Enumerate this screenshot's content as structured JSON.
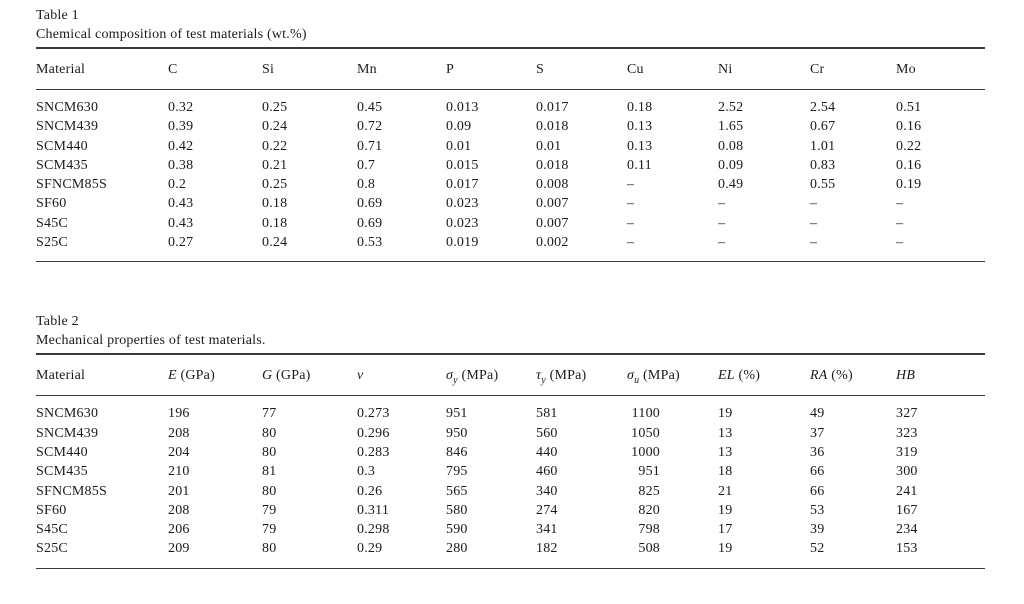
{
  "page": {
    "background": "#ffffff",
    "text_color": "#1b1b1b",
    "rule_color": "#3a3a3a"
  },
  "table1": {
    "label": "Table 1",
    "caption": "Chemical composition of test materials (wt.%)",
    "headers": [
      [
        {
          "t": "Material"
        }
      ],
      [
        {
          "t": "C"
        }
      ],
      [
        {
          "t": "Si"
        }
      ],
      [
        {
          "t": "Mn"
        }
      ],
      [
        {
          "t": "P"
        }
      ],
      [
        {
          "t": "S"
        }
      ],
      [
        {
          "t": "Cu"
        }
      ],
      [
        {
          "t": "Ni"
        }
      ],
      [
        {
          "t": "Cr"
        }
      ],
      [
        {
          "t": "Mo"
        }
      ]
    ],
    "rows": [
      [
        "SNCM630",
        "0.32",
        "0.25",
        "0.45",
        "0.013",
        "0.017",
        "0.18",
        "2.52",
        "2.54",
        "0.51"
      ],
      [
        "SNCM439",
        "0.39",
        "0.24",
        "0.72",
        "0.09",
        "0.018",
        "0.13",
        "1.65",
        "0.67",
        "0.16"
      ],
      [
        "SCM440",
        "0.42",
        "0.22",
        "0.71",
        "0.01",
        "0.01",
        "0.13",
        "0.08",
        "1.01",
        "0.22"
      ],
      [
        "SCM435",
        "0.38",
        "0.21",
        "0.7",
        "0.015",
        "0.018",
        "0.11",
        "0.09",
        "0.83",
        "0.16"
      ],
      [
        "SFNCM85S",
        "0.2",
        "0.25",
        "0.8",
        "0.017",
        "0.008",
        "–",
        "0.49",
        "0.55",
        "0.19"
      ],
      [
        "SF60",
        "0.43",
        "0.18",
        "0.69",
        "0.023",
        "0.007",
        "–",
        "–",
        "–",
        "–"
      ],
      [
        "S45C",
        "0.43",
        "0.18",
        "0.69",
        "0.023",
        "0.007",
        "–",
        "–",
        "–",
        "–"
      ],
      [
        "S25C",
        "0.27",
        "0.24",
        "0.53",
        "0.019",
        "0.002",
        "–",
        "–",
        "–",
        "–"
      ]
    ]
  },
  "table2": {
    "label": "Table 2",
    "caption": "Mechanical properties of test materials.",
    "headers": [
      [
        {
          "t": "Material"
        }
      ],
      [
        {
          "t": "E",
          "s": "i"
        },
        {
          "t": " (GPa)"
        }
      ],
      [
        {
          "t": "G",
          "s": "i"
        },
        {
          "t": " (GPa)"
        }
      ],
      [
        {
          "t": "ν",
          "s": "i"
        }
      ],
      [
        {
          "t": "σ",
          "s": "i"
        },
        {
          "t": "y",
          "s": "isub"
        },
        {
          "t": " (MPa)"
        }
      ],
      [
        {
          "t": "τ",
          "s": "i"
        },
        {
          "t": "y",
          "s": "isub"
        },
        {
          "t": " (MPa)"
        }
      ],
      [
        {
          "t": "σ",
          "s": "i"
        },
        {
          "t": "u",
          "s": "isub"
        },
        {
          "t": " (MPa)"
        }
      ],
      [
        {
          "t": "EL",
          "s": "i"
        },
        {
          "t": " (%)"
        }
      ],
      [
        {
          "t": "RA",
          "s": "i"
        },
        {
          "t": " (%)"
        }
      ],
      [
        {
          "t": "HB",
          "s": "i"
        }
      ]
    ],
    "rows": [
      [
        "SNCM630",
        "196",
        "77",
        "0.273",
        "951",
        "581",
        "1100",
        "19",
        "49",
        "327"
      ],
      [
        "SNCM439",
        "208",
        "80",
        "0.296",
        "950",
        "560",
        "1050",
        "13",
        "37",
        "323"
      ],
      [
        "SCM440",
        "204",
        "80",
        "0.283",
        "846",
        "440",
        "1000",
        "13",
        "36",
        "319"
      ],
      [
        "SCM435",
        "210",
        "81",
        "0.3",
        "795",
        "460",
        "951",
        "18",
        "66",
        "300"
      ],
      [
        "SFNCM85S",
        "201",
        "80",
        "0.26",
        "565",
        "340",
        "825",
        "21",
        "66",
        "241"
      ],
      [
        "SF60",
        "208",
        "79",
        "0.311",
        "580",
        "274",
        "820",
        "19",
        "53",
        "167"
      ],
      [
        "S45C",
        "206",
        "79",
        "0.298",
        "590",
        "341",
        "798",
        "17",
        "39",
        "234"
      ],
      [
        "S25C",
        "209",
        "80",
        "0.29",
        "280",
        "182",
        "508",
        "19",
        "52",
        "153"
      ]
    ]
  }
}
